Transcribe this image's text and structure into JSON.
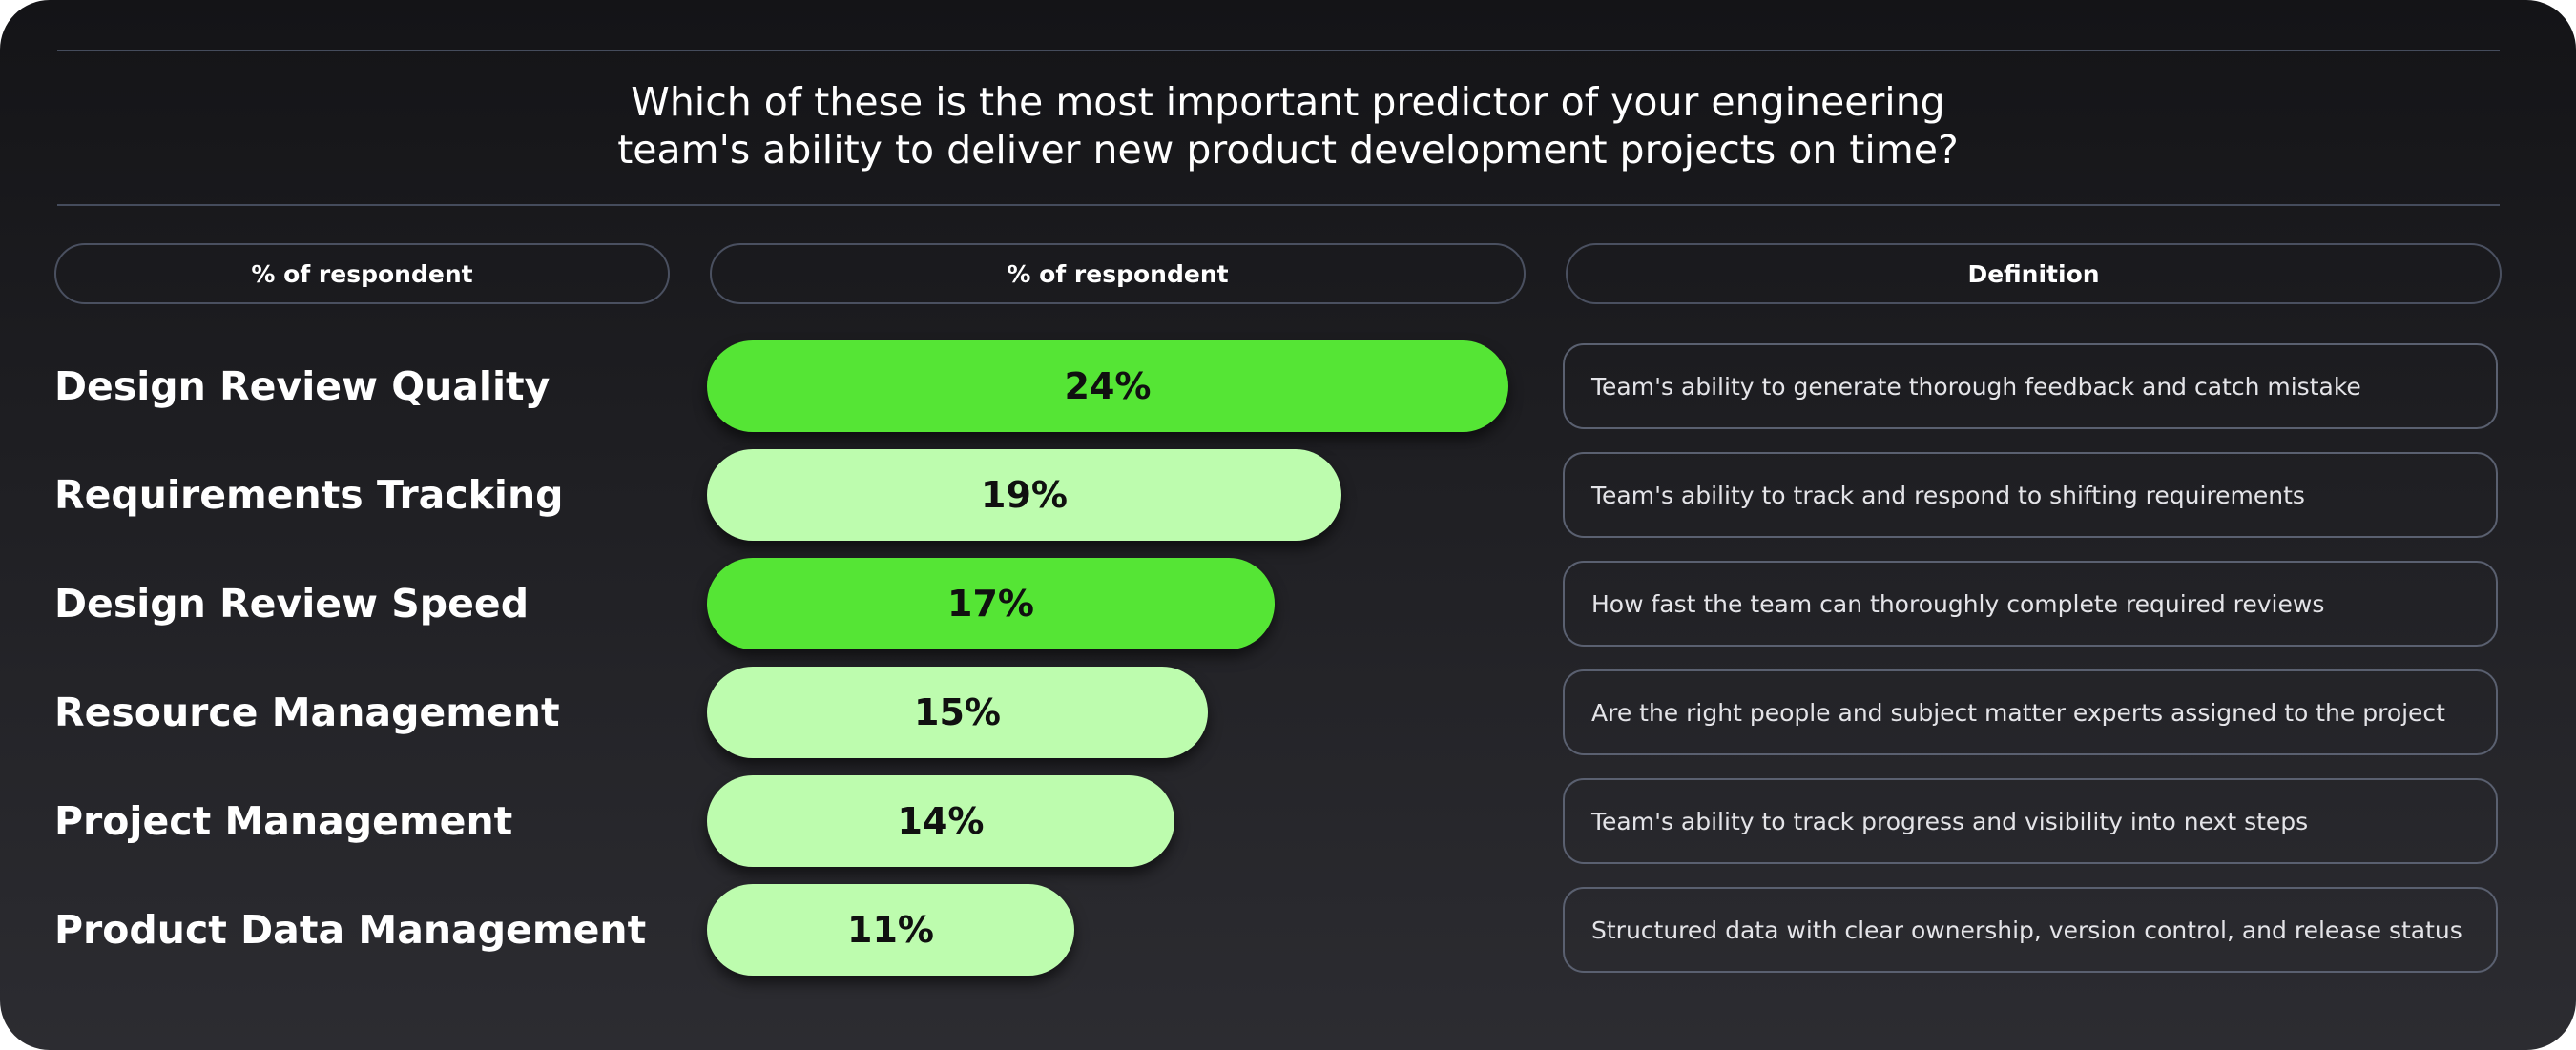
{
  "title_lines": [
    "Which of these is the most important predictor of your engineering",
    "team's ability to deliver new product development projects on time?"
  ],
  "headers": {
    "col1": "% of respondent",
    "col2": "% of respondent",
    "col3": "Definition"
  },
  "colors": {
    "highlight": "#55e535",
    "normal": "#bdfcae",
    "background": "#1c1c20"
  },
  "chart_data": {
    "type": "bar",
    "orientation": "horizontal",
    "categories": [
      "Design Review Quality",
      "Requirements Tracking",
      "Design Review Speed",
      "Resource Management",
      "Project Management",
      "Product Data Management"
    ],
    "values": [
      24,
      19,
      17,
      15,
      14,
      11
    ],
    "value_labels": [
      "24%",
      "19%",
      "17%",
      "15%",
      "14%",
      "11%"
    ],
    "highlighted": [
      true,
      false,
      true,
      false,
      false,
      false
    ],
    "definitions": [
      "Team's ability to generate thorough feedback and catch mistake",
      "Team's ability to track and respond to shifting requirements",
      "How fast the team can thoroughly complete required reviews",
      "Are the right people and subject matter experts assigned to the project",
      "Team's ability to track progress and visibility into next steps",
      "Structured data with clear ownership, version control, and release status"
    ],
    "title": "",
    "xlabel": "",
    "ylabel": ""
  }
}
